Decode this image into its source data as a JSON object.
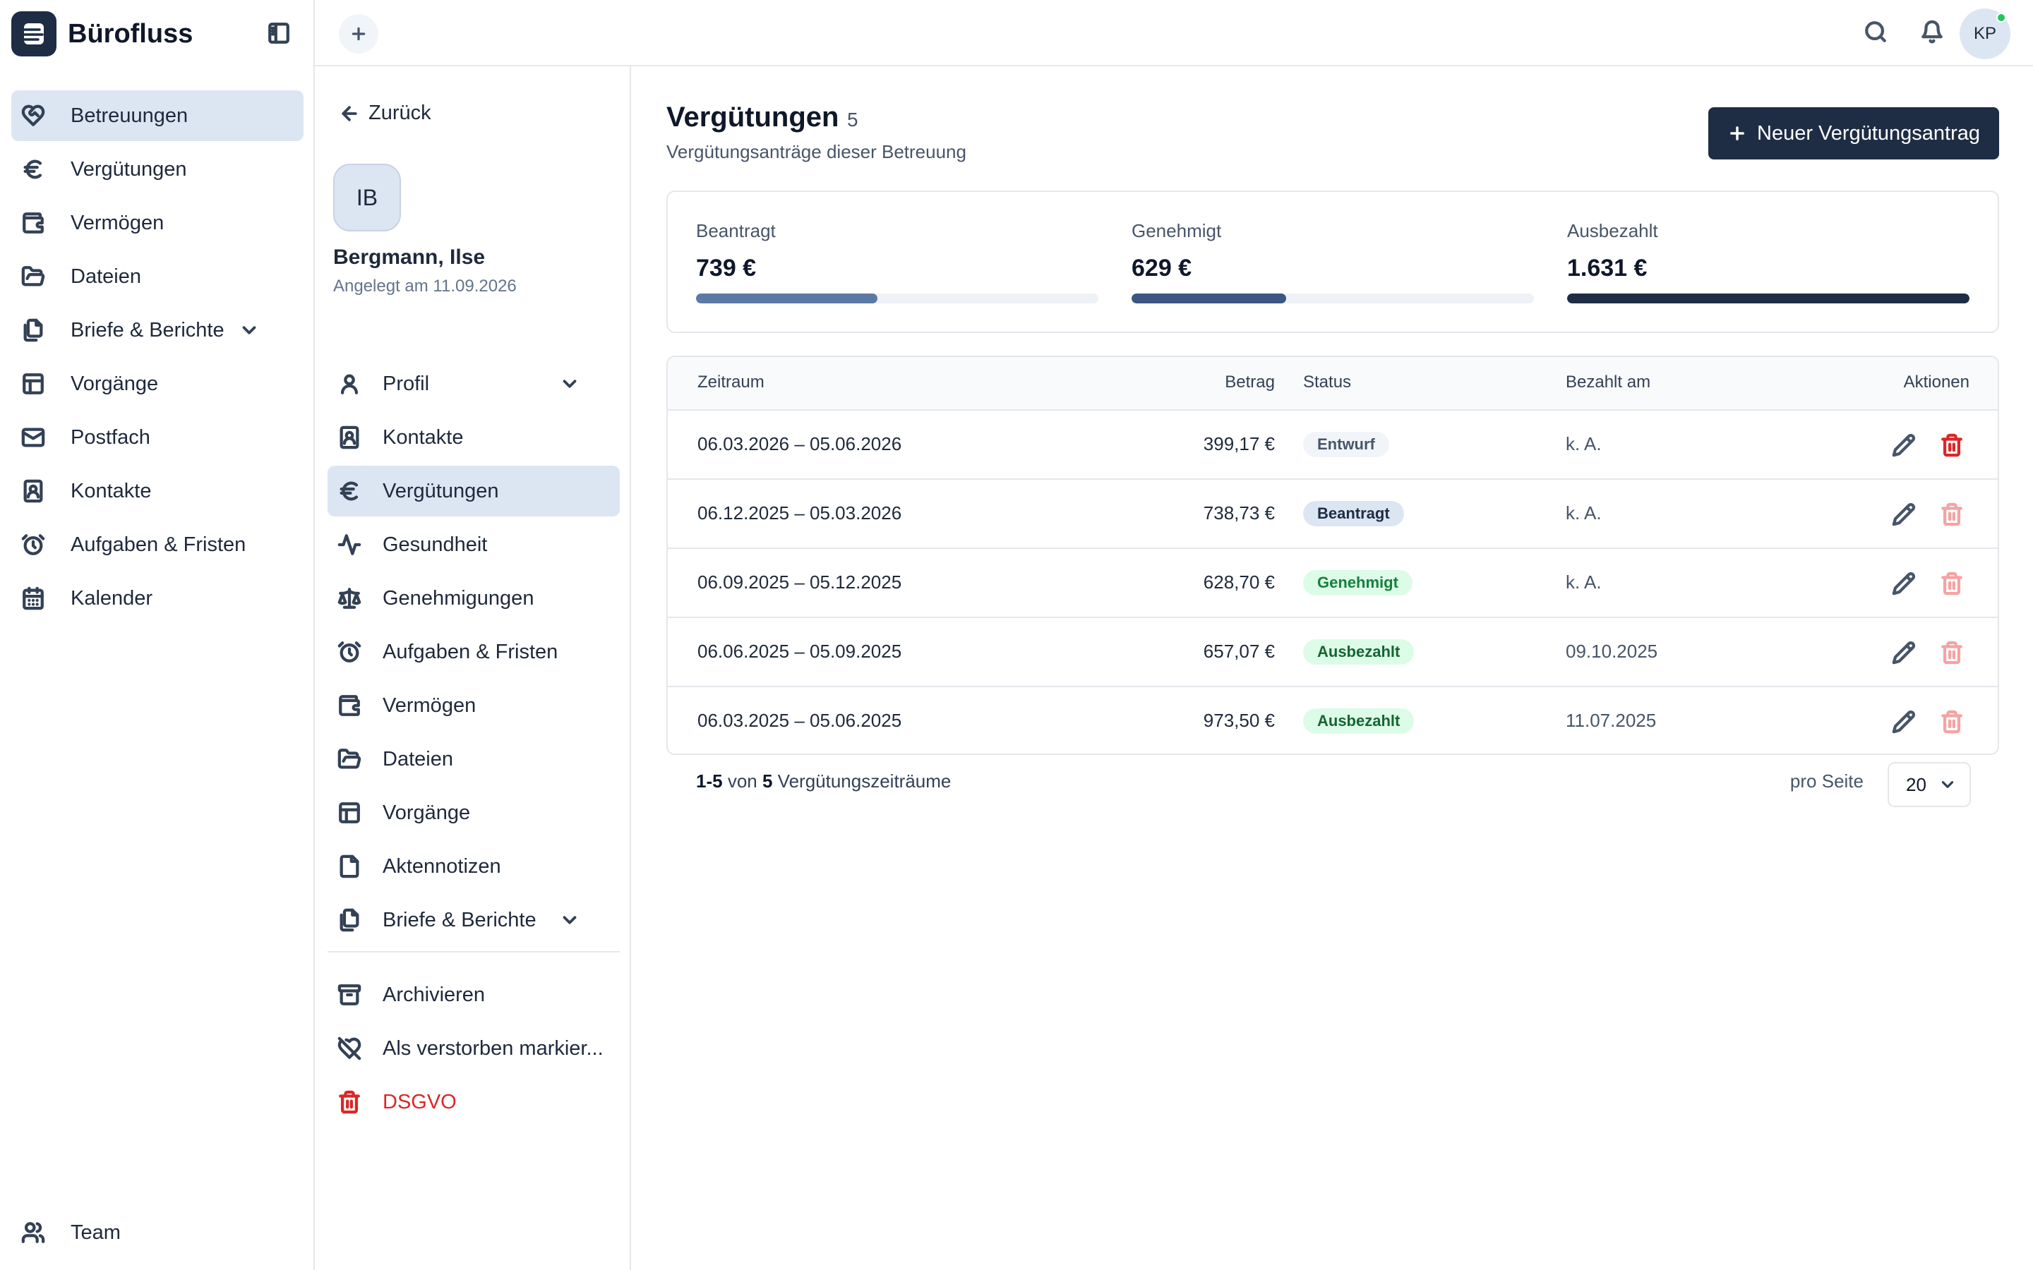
{
  "app": {
    "name": "Bürofluss"
  },
  "sidebar": {
    "items": [
      {
        "label": "Betreuungen",
        "icon": "heart-handshake-icon",
        "active": true
      },
      {
        "label": "Vergütungen",
        "icon": "euro-icon"
      },
      {
        "label": "Vermögen",
        "icon": "wallet-icon"
      },
      {
        "label": "Dateien",
        "icon": "folder-icon"
      },
      {
        "label": "Briefe & Berichte",
        "icon": "documents-icon",
        "expandable": true
      },
      {
        "label": "Vorgänge",
        "icon": "table-icon"
      },
      {
        "label": "Postfach",
        "icon": "mail-icon"
      },
      {
        "label": "Kontakte",
        "icon": "contact-icon"
      },
      {
        "label": "Aufgaben & Fristen",
        "icon": "alarm-clock-icon"
      },
      {
        "label": "Kalender",
        "icon": "calendar-icon"
      }
    ],
    "footer": {
      "label": "Team",
      "icon": "users-icon"
    }
  },
  "topbar": {
    "avatar_initials": "KP"
  },
  "person": {
    "back_label": "Zurück",
    "initials": "IB",
    "name": "Bergmann, Ilse",
    "created": "Angelegt am 11.09.2026",
    "nav": [
      {
        "label": "Profil",
        "icon": "user-icon",
        "expandable": true
      },
      {
        "label": "Kontakte",
        "icon": "contact-icon"
      },
      {
        "label": "Vergütungen",
        "icon": "euro-icon",
        "active": true
      },
      {
        "label": "Gesundheit",
        "icon": "activity-icon"
      },
      {
        "label": "Genehmigungen",
        "icon": "scale-icon"
      },
      {
        "label": "Aufgaben & Fristen",
        "icon": "alarm-clock-icon"
      },
      {
        "label": "Vermögen",
        "icon": "wallet-icon"
      },
      {
        "label": "Dateien",
        "icon": "folder-icon"
      },
      {
        "label": "Vorgänge",
        "icon": "table-icon"
      },
      {
        "label": "Aktennotizen",
        "icon": "note-icon"
      },
      {
        "label": "Briefe & Berichte",
        "icon": "documents-icon",
        "expandable": true
      }
    ],
    "actions": [
      {
        "label": "Archivieren",
        "icon": "archive-icon"
      },
      {
        "label": "Als verstorben markier...",
        "icon": "heart-off-icon"
      },
      {
        "label": "DSGVO",
        "icon": "trash-icon",
        "danger": true
      }
    ]
  },
  "main": {
    "title": "Vergütungen",
    "count": "5",
    "subtitle": "Vergütungsanträge dieser Betreuung",
    "new_button": "Neuer Vergütungsantrag",
    "stats": [
      {
        "label": "Beantragt",
        "value": "739 €",
        "fraction": 0.45,
        "color": "#5b7aa3"
      },
      {
        "label": "Genehmigt",
        "value": "629 €",
        "fraction": 0.385,
        "color": "#3b5680"
      },
      {
        "label": "Ausbezahlt",
        "value": "1.631 €",
        "fraction": 1.0,
        "color": "#1e2d44"
      }
    ],
    "table": {
      "headers": {
        "period": "Zeitraum",
        "amount": "Betrag",
        "status": "Status",
        "paid": "Bezahlt am",
        "actions": "Aktionen"
      },
      "rows": [
        {
          "period": "06.03.2026 – 05.06.2026",
          "amount": "399,17 €",
          "status": "Entwurf",
          "paid": "k. A.",
          "deletable": true
        },
        {
          "period": "06.12.2025 – 05.03.2026",
          "amount": "738,73 €",
          "status": "Beantragt",
          "paid": "k. A.",
          "deletable": false
        },
        {
          "period": "06.09.2025 – 05.12.2025",
          "amount": "628,70 €",
          "status": "Genehmigt",
          "paid": "k. A.",
          "deletable": false
        },
        {
          "period": "06.06.2025 – 05.09.2025",
          "amount": "657,07 €",
          "status": "Ausbezahlt",
          "paid": "09.10.2025",
          "deletable": false
        },
        {
          "period": "06.03.2025 – 05.06.2025",
          "amount": "973,50 €",
          "status": "Ausbezahlt",
          "paid": "11.07.2025",
          "deletable": false
        }
      ]
    },
    "pager": {
      "range": "1-5",
      "von": "von",
      "total": "5",
      "noun": "Vergütungszeiträume",
      "per_page_label": "pro Seite",
      "per_page": "20"
    }
  },
  "status_colors": {
    "Entwurf": {
      "bg": "#f1f5f9",
      "fg": "#475569"
    },
    "Beantragt": {
      "bg": "#dce6f3",
      "fg": "#1e2d44"
    },
    "Genehmigt": {
      "bg": "#dcfce7",
      "fg": "#15803d"
    },
    "Ausbezahlt": {
      "bg": "#dcfce7",
      "fg": "#166534"
    }
  }
}
